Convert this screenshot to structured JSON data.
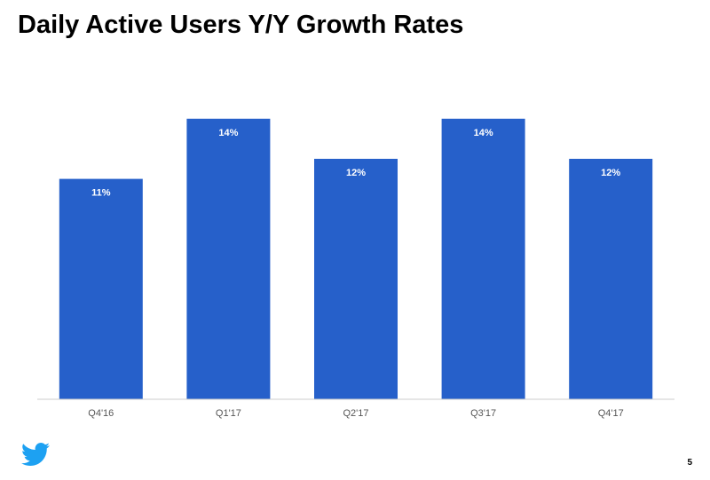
{
  "slide": {
    "title": "Daily Active Users Y/Y Growth Rates",
    "page_number": "5"
  },
  "colors": {
    "bar": "#2660CA",
    "axis": "#CCCCCC",
    "logo": "#1DA1F2"
  },
  "logo": {
    "icon": "twitter-bird-icon"
  },
  "chart_data": {
    "type": "bar",
    "title": "Daily Active Users Y/Y Growth Rates",
    "xlabel": "",
    "ylabel": "",
    "categories": [
      "Q4'16",
      "Q1'17",
      "Q2'17",
      "Q3'17",
      "Q4'17"
    ],
    "values": [
      11,
      14,
      12,
      14,
      12
    ],
    "value_labels": [
      "11%",
      "14%",
      "12%",
      "14%",
      "12%"
    ],
    "ylim": [
      0,
      14.7
    ],
    "grid": false,
    "legend": "none"
  }
}
